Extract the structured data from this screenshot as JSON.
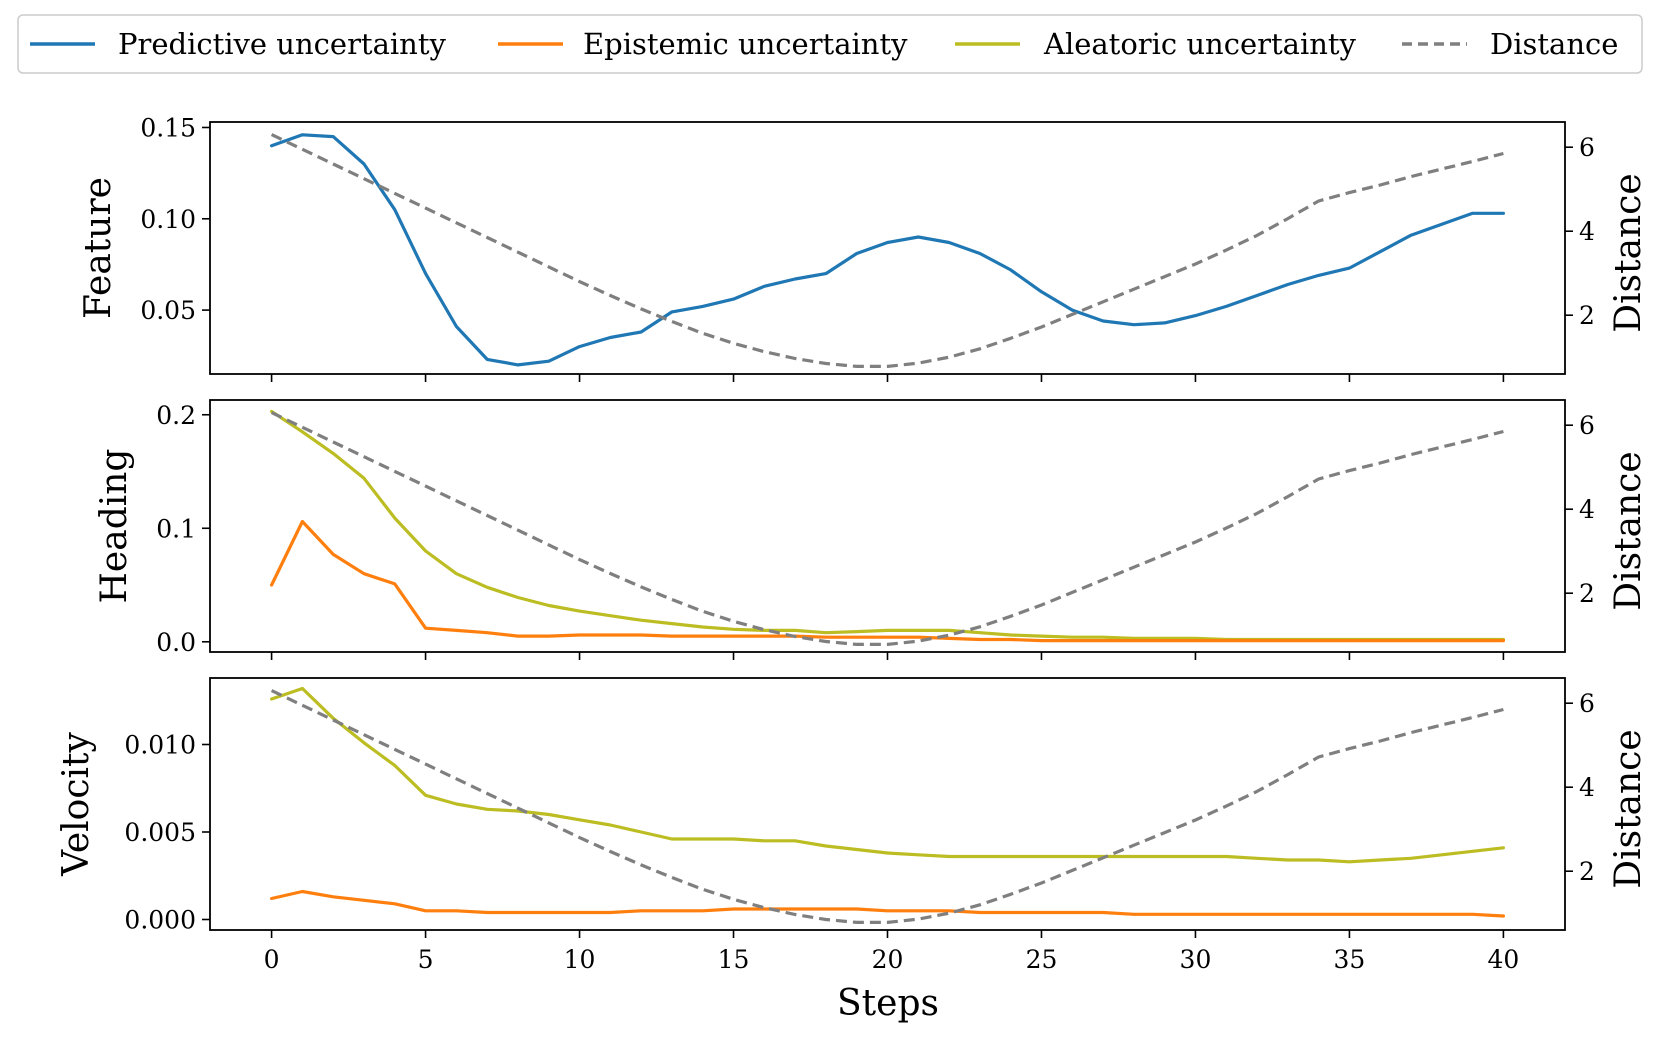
{
  "chart_data": {
    "type": "line",
    "legend": {
      "placement": "top",
      "entries": [
        {
          "label": "Predictive uncertainty",
          "color": "#1f77b4",
          "dash": "solid"
        },
        {
          "label": "Epistemic uncertainty",
          "color": "#ff7f0e",
          "dash": "solid"
        },
        {
          "label": "Aleatoric uncertainty",
          "color": "#bcbd22",
          "dash": "solid"
        },
        {
          "label": "Distance",
          "color": "#7f7f7f",
          "dash": "dashed"
        }
      ]
    },
    "xlabel": "Steps",
    "xlim": [
      -2,
      42
    ],
    "xticks": [
      0,
      5,
      10,
      15,
      20,
      25,
      30,
      35,
      40
    ],
    "x": [
      0,
      1,
      2,
      3,
      4,
      5,
      6,
      7,
      8,
      9,
      10,
      11,
      12,
      13,
      14,
      15,
      16,
      17,
      18,
      19,
      20,
      21,
      22,
      23,
      24,
      25,
      26,
      27,
      28,
      29,
      30,
      31,
      32,
      33,
      34,
      35,
      36,
      37,
      38,
      39,
      40
    ],
    "distance": {
      "ylabel": "Distance",
      "ylim": [
        0.6,
        6.6
      ],
      "yticks": [
        2,
        4,
        6
      ],
      "values": [
        6.3,
        5.95,
        5.6,
        5.25,
        4.9,
        4.55,
        4.2,
        3.85,
        3.5,
        3.15,
        2.8,
        2.47,
        2.15,
        1.85,
        1.57,
        1.33,
        1.13,
        0.97,
        0.85,
        0.78,
        0.78,
        0.86,
        1.0,
        1.2,
        1.45,
        1.72,
        2.02,
        2.32,
        2.62,
        2.92,
        3.22,
        3.55,
        3.9,
        4.3,
        4.72,
        4.92,
        5.1,
        5.3,
        5.48,
        5.66,
        5.85
      ]
    },
    "subplots": [
      {
        "ylabel": "Feature",
        "ylim": [
          0.015,
          0.153
        ],
        "yticks": [
          0.05,
          0.1,
          0.15
        ],
        "ytick_labels": [
          "0.05",
          "0.10",
          "0.15"
        ],
        "series": [
          {
            "name": "Predictive uncertainty",
            "color": "#1f77b4",
            "values": [
              0.14,
              0.146,
              0.145,
              0.13,
              0.105,
              0.07,
              0.041,
              0.023,
              0.02,
              0.022,
              0.03,
              0.035,
              0.038,
              0.049,
              0.052,
              0.056,
              0.063,
              0.067,
              0.07,
              0.081,
              0.087,
              0.09,
              0.087,
              0.081,
              0.072,
              0.06,
              0.05,
              0.044,
              0.042,
              0.043,
              0.047,
              0.052,
              0.058,
              0.064,
              0.069,
              0.073,
              0.082,
              0.091,
              0.097,
              0.103,
              0.103
            ]
          }
        ]
      },
      {
        "ylabel": "Heading",
        "ylim": [
          -0.009,
          0.213
        ],
        "yticks": [
          0.0,
          0.1,
          0.2
        ],
        "ytick_labels": [
          "0.0",
          "0.1",
          "0.2"
        ],
        "series": [
          {
            "name": "Aleatoric uncertainty",
            "color": "#bcbd22",
            "values": [
              0.203,
              0.185,
              0.166,
              0.144,
              0.109,
              0.08,
              0.06,
              0.048,
              0.039,
              0.032,
              0.027,
              0.023,
              0.019,
              0.016,
              0.013,
              0.011,
              0.01,
              0.01,
              0.008,
              0.009,
              0.01,
              0.01,
              0.01,
              0.008,
              0.006,
              0.005,
              0.004,
              0.004,
              0.003,
              0.003,
              0.003,
              0.002,
              0.002,
              0.002,
              0.002,
              0.002,
              0.002,
              0.002,
              0.002,
              0.002,
              0.002
            ]
          },
          {
            "name": "Epistemic uncertainty",
            "color": "#ff7f0e",
            "values": [
              0.05,
              0.106,
              0.077,
              0.06,
              0.051,
              0.012,
              0.01,
              0.008,
              0.005,
              0.005,
              0.006,
              0.006,
              0.006,
              0.005,
              0.005,
              0.005,
              0.005,
              0.005,
              0.004,
              0.004,
              0.004,
              0.004,
              0.003,
              0.002,
              0.002,
              0.001,
              0.001,
              0.001,
              0.001,
              0.001,
              0.001,
              0.001,
              0.001,
              0.001,
              0.001,
              0.001,
              0.001,
              0.001,
              0.001,
              0.001,
              0.001
            ]
          }
        ]
      },
      {
        "ylabel": "Velocity",
        "ylim": [
          -0.0006,
          0.0138
        ],
        "yticks": [
          0.0,
          0.005,
          0.01
        ],
        "ytick_labels": [
          "0.000",
          "0.005",
          "0.010"
        ],
        "series": [
          {
            "name": "Aleatoric uncertainty",
            "color": "#bcbd22",
            "values": [
              0.0126,
              0.0132,
              0.0115,
              0.0101,
              0.0088,
              0.0071,
              0.0066,
              0.0063,
              0.0062,
              0.006,
              0.0057,
              0.0054,
              0.005,
              0.0046,
              0.0046,
              0.0046,
              0.0045,
              0.0045,
              0.0042,
              0.004,
              0.0038,
              0.0037,
              0.0036,
              0.0036,
              0.0036,
              0.0036,
              0.0036,
              0.0036,
              0.0036,
              0.0036,
              0.0036,
              0.0036,
              0.0035,
              0.0034,
              0.0034,
              0.0033,
              0.0034,
              0.0035,
              0.0037,
              0.0039,
              0.0041
            ]
          },
          {
            "name": "Epistemic uncertainty",
            "color": "#ff7f0e",
            "values": [
              0.0012,
              0.0016,
              0.0013,
              0.0011,
              0.0009,
              0.0005,
              0.0005,
              0.0004,
              0.0004,
              0.0004,
              0.0004,
              0.0004,
              0.0005,
              0.0005,
              0.0005,
              0.0006,
              0.0006,
              0.0006,
              0.0006,
              0.0006,
              0.0005,
              0.0005,
              0.0005,
              0.0004,
              0.0004,
              0.0004,
              0.0004,
              0.0004,
              0.0003,
              0.0003,
              0.0003,
              0.0003,
              0.0003,
              0.0003,
              0.0003,
              0.0003,
              0.0003,
              0.0003,
              0.0003,
              0.0003,
              0.0002
            ]
          }
        ]
      }
    ]
  }
}
